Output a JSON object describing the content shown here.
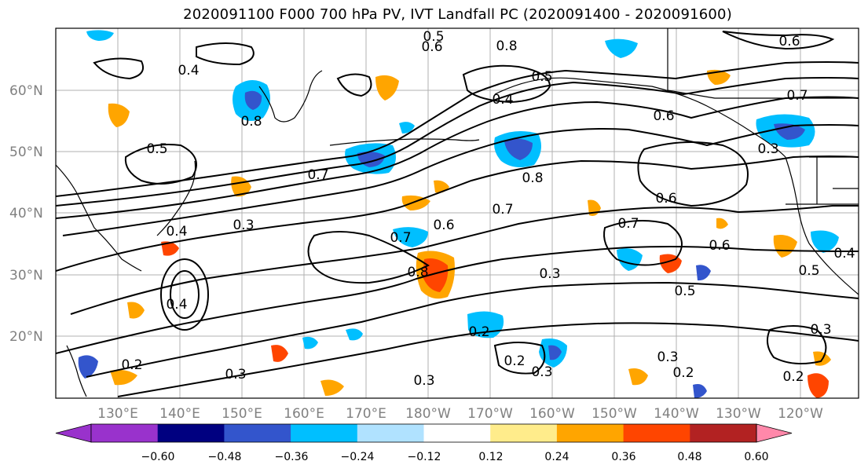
{
  "title": "2020091100 F000 700 hPa PV, IVT Landfall PC (2020091400 - 2020091600)",
  "lat_labels": [
    "60°N",
    "50°N",
    "40°N",
    "30°N",
    "20°N"
  ],
  "lon_labels": [
    "130°E",
    "140°E",
    "150°E",
    "160°E",
    "170°E",
    "180°W",
    "170°W",
    "160°W",
    "150°W",
    "140°W",
    "130°W",
    "120°W"
  ],
  "colorbar": {
    "ticks": [
      "−0.60",
      "−0.48",
      "−0.36",
      "−0.24",
      "−0.12",
      "0.12",
      "0.24",
      "0.36",
      "0.48",
      "0.60"
    ],
    "colors": [
      "#9932CC",
      "#000080",
      "#3355CC",
      "#00BFFF",
      "#B0E2FF",
      "#FFFFFF",
      "#FFEC8B",
      "#FFA500",
      "#FF4500",
      "#B22222",
      "#FF88AA"
    ]
  },
  "contour_labels": [
    "0.8",
    "0.6",
    "0.5",
    "0.4",
    "0.6",
    "0.5",
    "0.3",
    "0.7",
    "0.8",
    "0.7",
    "0.6",
    "0.8",
    "0.3",
    "0.4",
    "0.5",
    "0.7",
    "0.8",
    "0.6",
    "0.3",
    "0.2",
    "0.3",
    "0.2",
    "0.3",
    "0.5",
    "0.3",
    "0.4",
    "0.2",
    "0.2",
    "0.6",
    "0.4",
    "0.4",
    "0.7",
    "0.3",
    "0.2",
    "0.3",
    "0.5",
    "0.7",
    "0.6"
  ]
}
